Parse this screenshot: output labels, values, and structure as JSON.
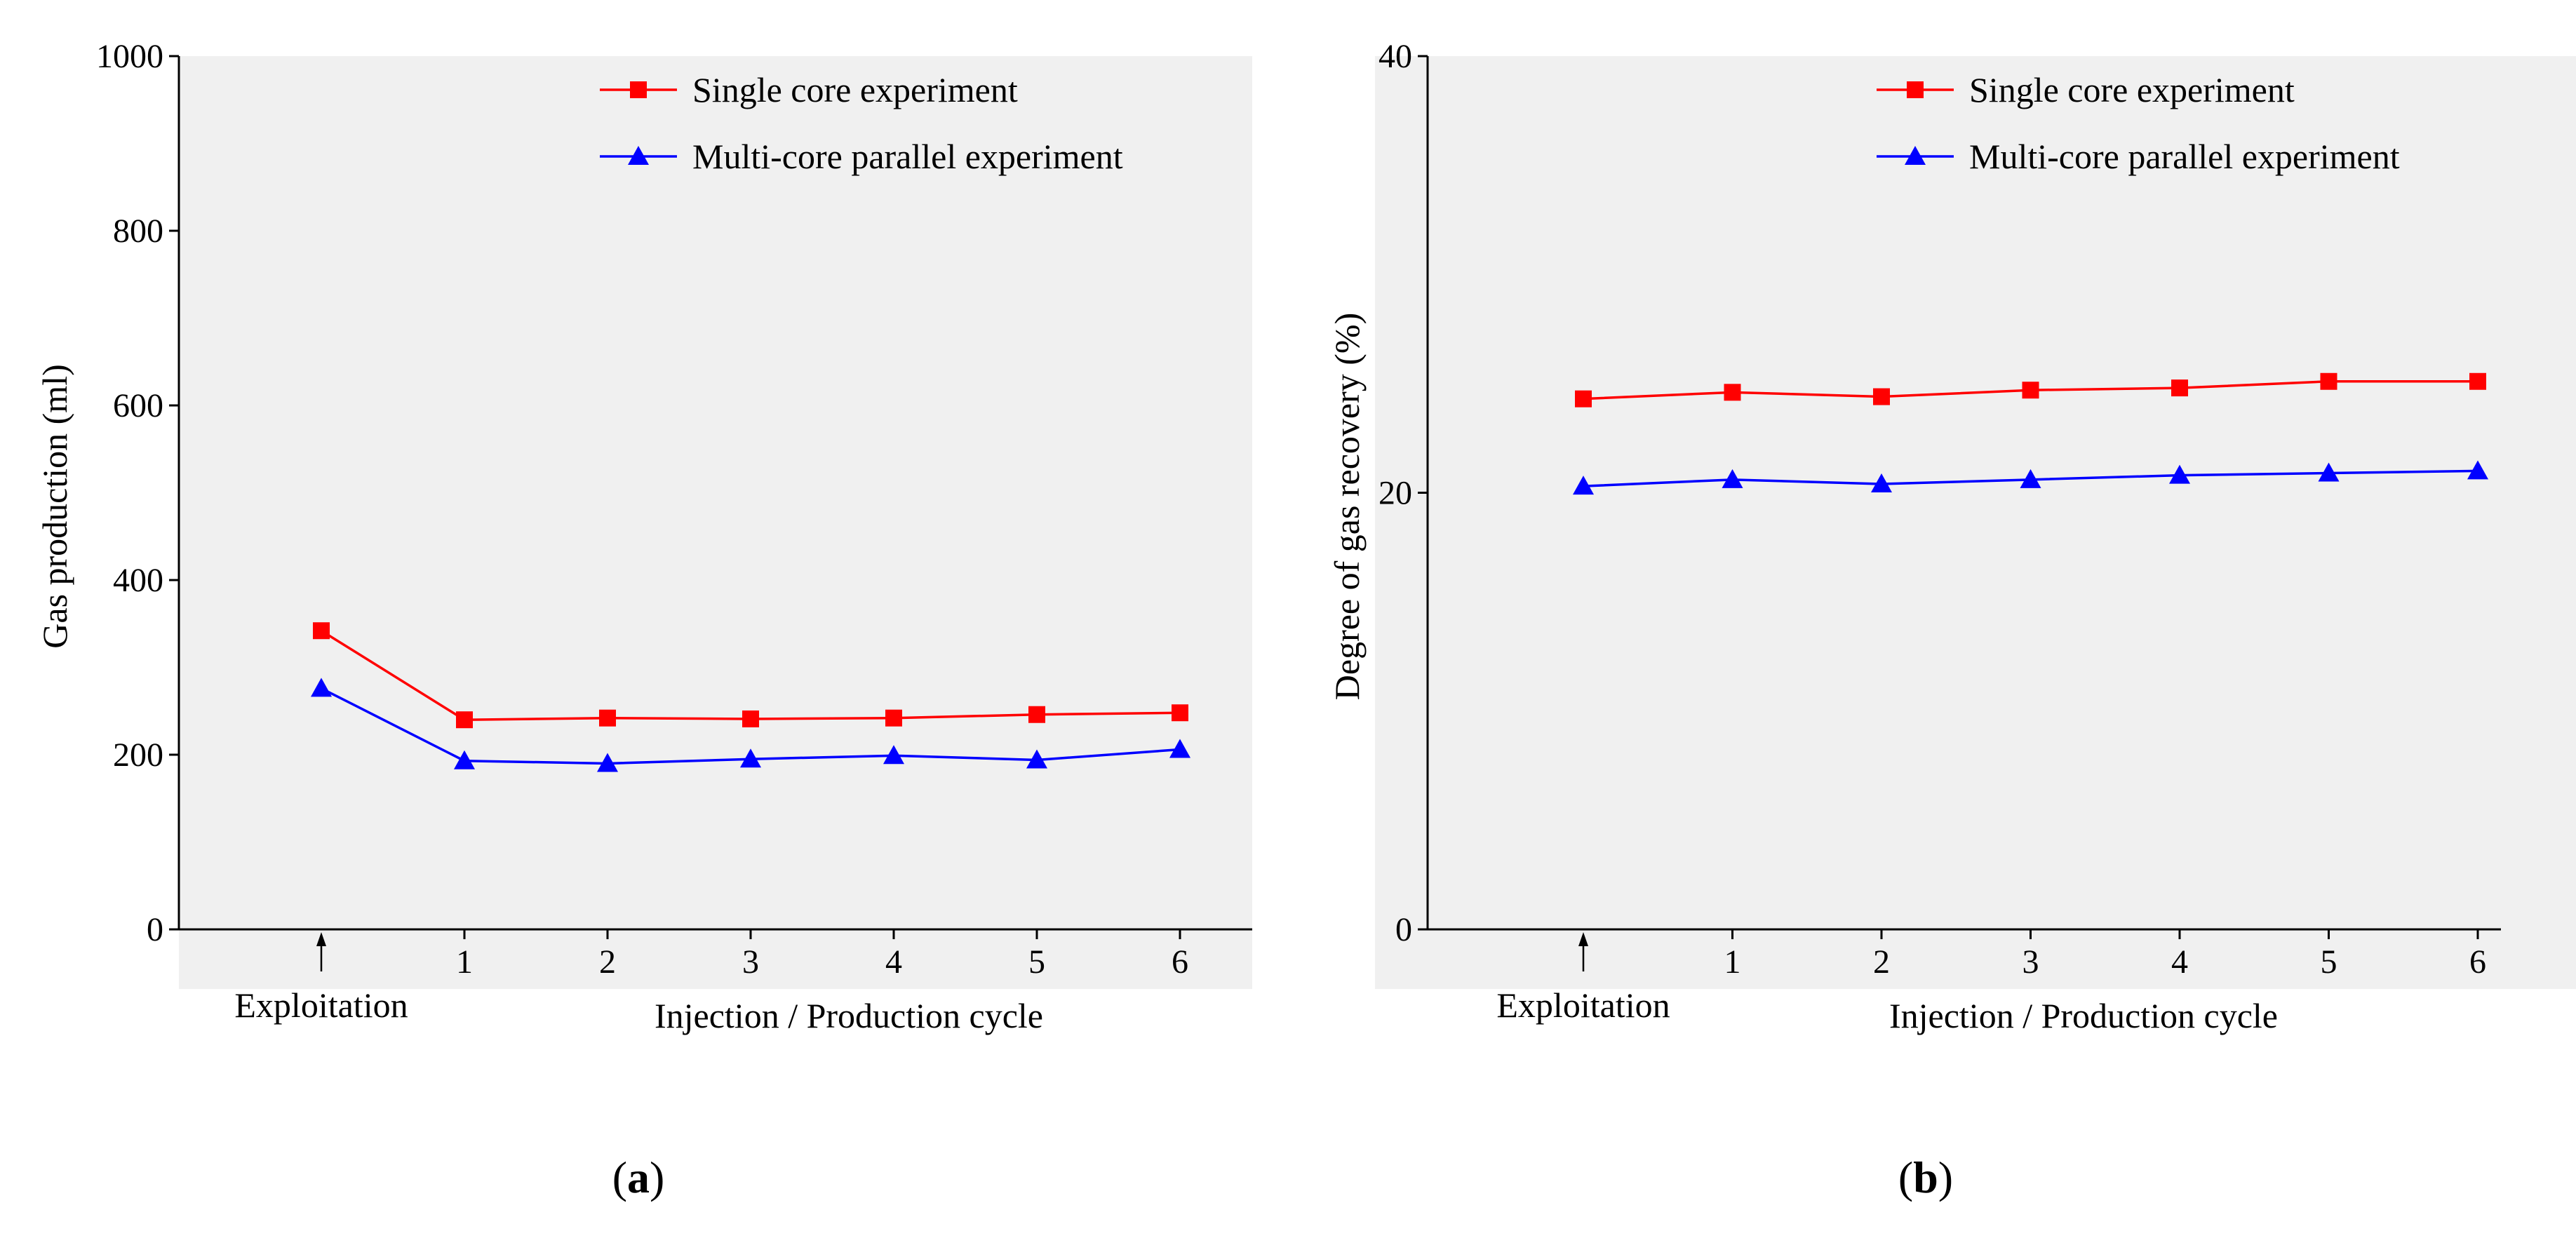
{
  "chart_data": [
    {
      "type": "line",
      "panel_label": "a",
      "x_categories": [
        "Exploitation",
        "1",
        "2",
        "3",
        "4",
        "5",
        "6"
      ],
      "x_tick_labels": [
        "1",
        "2",
        "3",
        "4",
        "5",
        "6"
      ],
      "x_annotation": "Exploitation",
      "xlabel": "Injection / Production cycle",
      "ylabel": "Gas production (ml)",
      "ylim": [
        0,
        1000
      ],
      "yticks": [
        0,
        200,
        400,
        600,
        800,
        1000
      ],
      "legend_position": "top-right",
      "series": [
        {
          "name": "Single core experiment",
          "color": "#ff0000",
          "marker": "square",
          "values": [
            342,
            240,
            242,
            241,
            242,
            246,
            248
          ]
        },
        {
          "name": "Multi-core parallel experiment",
          "color": "#0000ff",
          "marker": "triangle",
          "values": [
            276,
            193,
            190,
            195,
            199,
            194,
            206
          ]
        }
      ]
    },
    {
      "type": "line",
      "panel_label": "b",
      "x_categories": [
        "Exploitation",
        "1",
        "2",
        "3",
        "4",
        "5",
        "6"
      ],
      "x_tick_labels": [
        "1",
        "2",
        "3",
        "4",
        "5",
        "6"
      ],
      "x_annotation": "Exploitation",
      "xlabel": "Injection / Production cycle",
      "ylabel": "Degree of gas recovery (%)",
      "ylim": [
        0,
        40
      ],
      "yticks": [
        0,
        20,
        40
      ],
      "legend_position": "top-right",
      "series": [
        {
          "name": "Single core experiment",
          "color": "#ff0000",
          "marker": "square",
          "values": [
            24.3,
            24.6,
            24.4,
            24.7,
            24.8,
            25.1,
            25.1
          ]
        },
        {
          "name": "Multi-core parallel experiment",
          "color": "#0000ff",
          "marker": "triangle",
          "values": [
            20.3,
            20.6,
            20.4,
            20.6,
            20.8,
            20.9,
            21.0
          ]
        }
      ]
    }
  ]
}
